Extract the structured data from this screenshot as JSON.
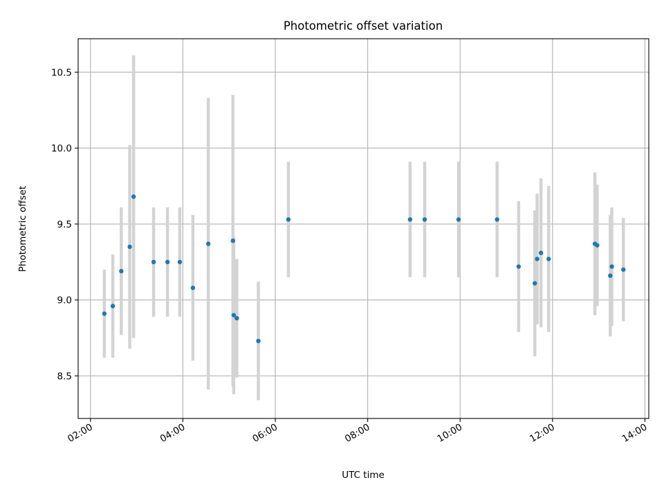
{
  "chart_data": {
    "type": "scatter",
    "title": "Photometric offset variation",
    "xlabel": "UTC time",
    "ylabel": "Photometric offset",
    "xlim": [
      "01:44",
      "14:05"
    ],
    "ylim": [
      8.22,
      10.72
    ],
    "grid": true,
    "x_tick_labels": [
      "02:00",
      "04:00",
      "06:00",
      "08:00",
      "10:00",
      "12:00",
      "14:00"
    ],
    "y_tick_labels": [
      "8.5",
      "9.0",
      "9.5",
      "10.0",
      "10.5"
    ],
    "colors": {
      "marker": "#1f77b4",
      "errorbar": "#d3d3d3",
      "grid": "#b0b0b0"
    },
    "points": [
      {
        "x": "02:18",
        "y": 8.91,
        "err": 0.29
      },
      {
        "x": "02:29",
        "y": 8.96,
        "err": 0.34
      },
      {
        "x": "02:40",
        "y": 9.19,
        "err": 0.42
      },
      {
        "x": "02:51",
        "y": 9.35,
        "err": 0.67
      },
      {
        "x": "02:56",
        "y": 9.68,
        "err": 0.93
      },
      {
        "x": "03:22",
        "y": 9.25,
        "err": 0.36
      },
      {
        "x": "03:40",
        "y": 9.25,
        "err": 0.36
      },
      {
        "x": "03:56",
        "y": 9.25,
        "err": 0.36
      },
      {
        "x": "04:13",
        "y": 9.08,
        "err": 0.48
      },
      {
        "x": "04:33",
        "y": 9.37,
        "err": 0.96
      },
      {
        "x": "05:05",
        "y": 9.39,
        "err": 0.96
      },
      {
        "x": "05:06",
        "y": 8.9,
        "err": 0.52
      },
      {
        "x": "05:10",
        "y": 8.88,
        "err": 0.39
      },
      {
        "x": "05:38",
        "y": 8.73,
        "err": 0.39
      },
      {
        "x": "06:17",
        "y": 9.53,
        "err": 0.38
      },
      {
        "x": "08:55",
        "y": 9.53,
        "err": 0.38
      },
      {
        "x": "09:14",
        "y": 9.53,
        "err": 0.38
      },
      {
        "x": "09:58",
        "y": 9.53,
        "err": 0.38
      },
      {
        "x": "10:48",
        "y": 9.53,
        "err": 0.38
      },
      {
        "x": "11:16",
        "y": 9.22,
        "err": 0.43
      },
      {
        "x": "11:37",
        "y": 9.11,
        "err": 0.48
      },
      {
        "x": "11:40",
        "y": 9.27,
        "err": 0.43
      },
      {
        "x": "11:45",
        "y": 9.31,
        "err": 0.49
      },
      {
        "x": "11:55",
        "y": 9.27,
        "err": 0.48
      },
      {
        "x": "12:55",
        "y": 9.37,
        "err": 0.47
      },
      {
        "x": "12:58",
        "y": 9.36,
        "err": 0.4
      },
      {
        "x": "13:15",
        "y": 9.16,
        "err": 0.4
      },
      {
        "x": "13:17",
        "y": 9.22,
        "err": 0.39
      },
      {
        "x": "13:32",
        "y": 9.2,
        "err": 0.34
      }
    ]
  }
}
